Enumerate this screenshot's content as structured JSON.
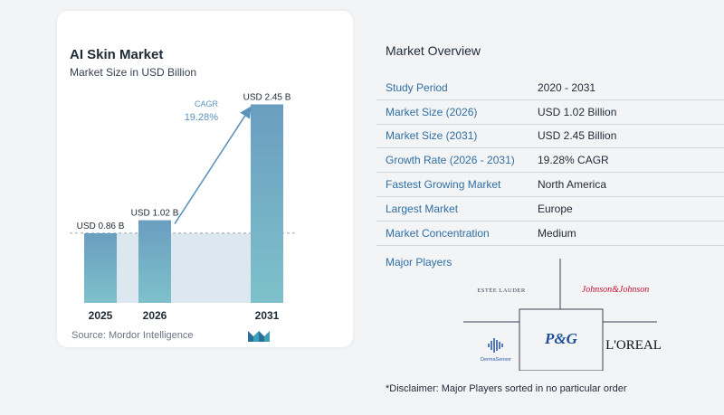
{
  "chart_data": {
    "type": "bar",
    "title": "AI Skin Market",
    "subtitle": "Market Size in USD Billion",
    "categories": [
      "2025",
      "2026",
      "2031"
    ],
    "values": [
      0.86,
      1.02,
      2.45
    ],
    "value_labels": [
      "USD 0.86 B",
      "USD 1.02 B",
      "USD 2.45 B"
    ],
    "cagr_label": "CAGR",
    "cagr_value": "19.28%",
    "ylim": [
      0,
      2.6
    ],
    "colors": {
      "bar_top": "#6a9ec0",
      "bar_bottom": "#7ec1cb",
      "band": "#dde7ef",
      "arrow": "#5b93bd"
    }
  },
  "source": "Source:  Mordor Intelligence",
  "overview": {
    "title": "Market Overview",
    "rows": [
      {
        "label": "Study Period",
        "value": "2020 - 2031"
      },
      {
        "label": "Market Size (2026)",
        "value": "USD 1.02 Billion"
      },
      {
        "label": "Market Size (2031)",
        "value": "USD 2.45 Billion"
      },
      {
        "label": "Growth Rate (2026 - 2031)",
        "value": "19.28% CAGR"
      },
      {
        "label": "Fastest Growing Market",
        "value": "North America"
      },
      {
        "label": "Largest Market",
        "value": "Europe"
      },
      {
        "label": "Market Concentration",
        "value": "Medium"
      }
    ]
  },
  "major_players": {
    "title": "Major Players",
    "logos": [
      "ESTĒE LAUDER",
      "Johnson&Johnson",
      "P&G",
      "L'OREAL",
      "DermaSensor"
    ]
  },
  "disclaimer": "*Disclaimer: Major Players sorted in no particular order"
}
